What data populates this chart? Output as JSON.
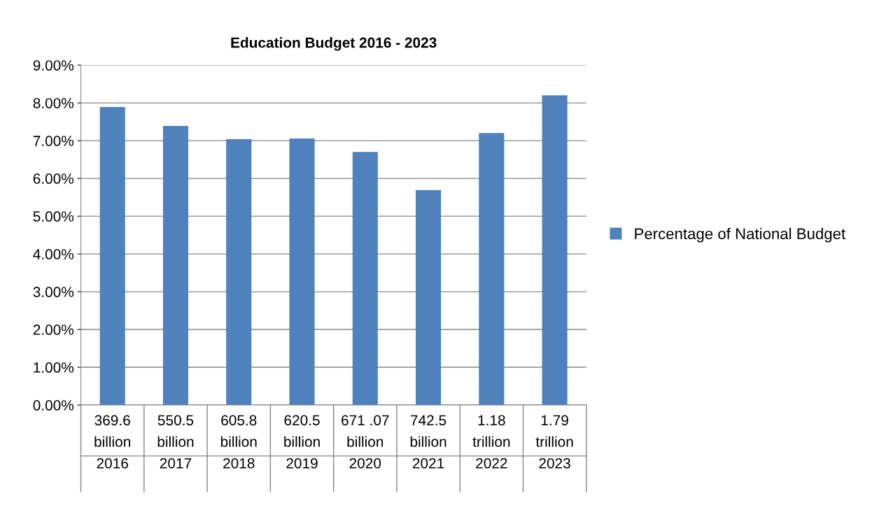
{
  "chart_data": {
    "type": "bar",
    "title": "Education Budget 2016 - 2023",
    "categories": [
      "369.6\nbillion\n2016",
      "550.5\nbillion\n2017",
      "605.8\nbillion\n2018",
      "620.5\nbillion\n2019",
      "671 .07\nbillion\n2020",
      "742.5\nbillion\n2021",
      "1.18\ntrillion\n2022",
      "1.79\ntrillion\n2023"
    ],
    "series": [
      {
        "name": "Percentage of National Budget",
        "color": "#4f81bd",
        "values": [
          7.89,
          7.39,
          7.04,
          7.06,
          6.7,
          5.69,
          7.2,
          8.2
        ]
      }
    ],
    "ylim": [
      0,
      9
    ],
    "yticks": [
      {
        "value": 0,
        "label": "0.00%"
      },
      {
        "value": 1,
        "label": "1.00%"
      },
      {
        "value": 2,
        "label": "2.00%"
      },
      {
        "value": 3,
        "label": "3.00%"
      },
      {
        "value": 4,
        "label": "4.00%"
      },
      {
        "value": 5,
        "label": "5.00%"
      },
      {
        "value": 6,
        "label": "6.00%"
      },
      {
        "value": 7,
        "label": "7.00%"
      },
      {
        "value": 8,
        "label": "8.00%"
      },
      {
        "value": 9,
        "label": "9.00%"
      }
    ],
    "grid": "y",
    "legend": "right"
  }
}
